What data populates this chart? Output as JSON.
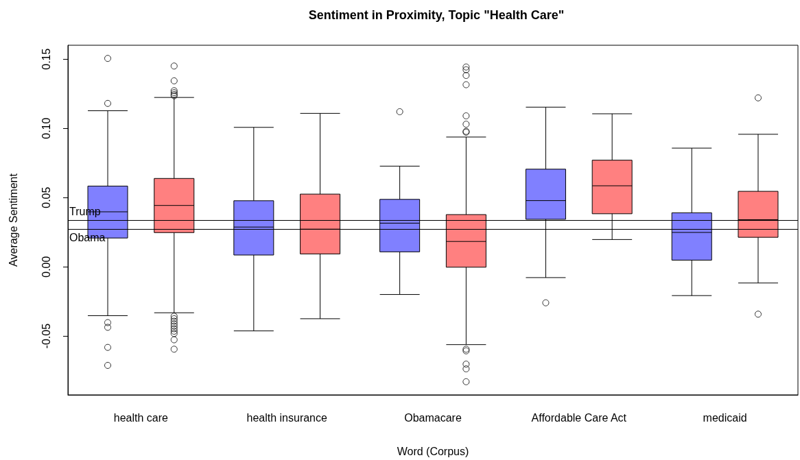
{
  "chart_data": {
    "type": "box",
    "title": "Sentiment in Proximity, Topic \"Health Care\"",
    "xlabel": "Word (Corpus)",
    "ylabel": "Average Sentiment",
    "categories": [
      "health care",
      "health insurance",
      "Obamacare",
      "Affordable Care Act",
      "medicaid"
    ],
    "series": [
      {
        "color": "#8080ff",
        "boxes": [
          {
            "low": -0.0353,
            "q1": 0.0208,
            "median": 0.0397,
            "q3": 0.0583,
            "high": 0.1127,
            "outliers": [
              0.1505,
              0.118,
              -0.0403,
              -0.0437,
              -0.0582,
              -0.0712
            ]
          },
          {
            "low": -0.0463,
            "q1": 0.0085,
            "median": 0.0287,
            "q3": 0.0477,
            "high": 0.1007
          },
          {
            "low": -0.02,
            "q1": 0.0108,
            "median": 0.0315,
            "q3": 0.0487,
            "high": 0.0727,
            "outliers": [
              0.112
            ]
          },
          {
            "low": -0.0078,
            "q1": 0.0343,
            "median": 0.0478,
            "q3": 0.0705,
            "high": 0.1153,
            "outliers": [
              -0.026
            ]
          },
          {
            "low": -0.0208,
            "q1": 0.0048,
            "median": 0.0248,
            "q3": 0.039,
            "high": 0.0857
          }
        ]
      },
      {
        "color": "#ff8080",
        "boxes": [
          {
            "low": -0.0332,
            "q1": 0.0247,
            "median": 0.0443,
            "q3": 0.0638,
            "high": 0.1223,
            "outliers": [
              0.145,
              0.1343,
              0.1272,
              0.1258,
              0.1245,
              0.1235,
              -0.0357,
              -0.0375,
              -0.0393,
              -0.0411,
              -0.0429,
              -0.0447,
              -0.0465,
              -0.0482,
              -0.0527,
              -0.0595
            ]
          },
          {
            "low": -0.0375,
            "q1": 0.0093,
            "median": 0.0272,
            "q3": 0.0525,
            "high": 0.1108
          },
          {
            "low": -0.0562,
            "q1": -0.0003,
            "median": 0.0183,
            "q3": 0.0377,
            "high": 0.0937,
            "outliers": [
              0.1443,
              0.1423,
              0.1382,
              0.1315,
              0.109,
              0.103,
              0.0978,
              0.0972,
              -0.0595,
              -0.0607,
              -0.0703,
              -0.0737,
              -0.083
            ]
          },
          {
            "low": 0.0197,
            "q1": 0.0383,
            "median": 0.0585,
            "q3": 0.077,
            "high": 0.1105
          },
          {
            "low": -0.0117,
            "q1": 0.0213,
            "median": 0.034,
            "q3": 0.0545,
            "high": 0.0957,
            "outliers": [
              0.122,
              -0.0342
            ]
          }
        ]
      }
    ],
    "ylim": [
      -0.0925,
      0.16
    ],
    "yticks": [
      -0.05,
      {
        "value": 0,
        "label": "0.00"
      },
      0.05,
      {
        "value": 0.1,
        "label": "0.10"
      },
      0.15
    ],
    "ref_lines": [
      {
        "axis": "y",
        "value": 0.0338,
        "label": "Trump"
      },
      {
        "axis": "y",
        "value": 0.027,
        "label": "Obama"
      }
    ]
  }
}
